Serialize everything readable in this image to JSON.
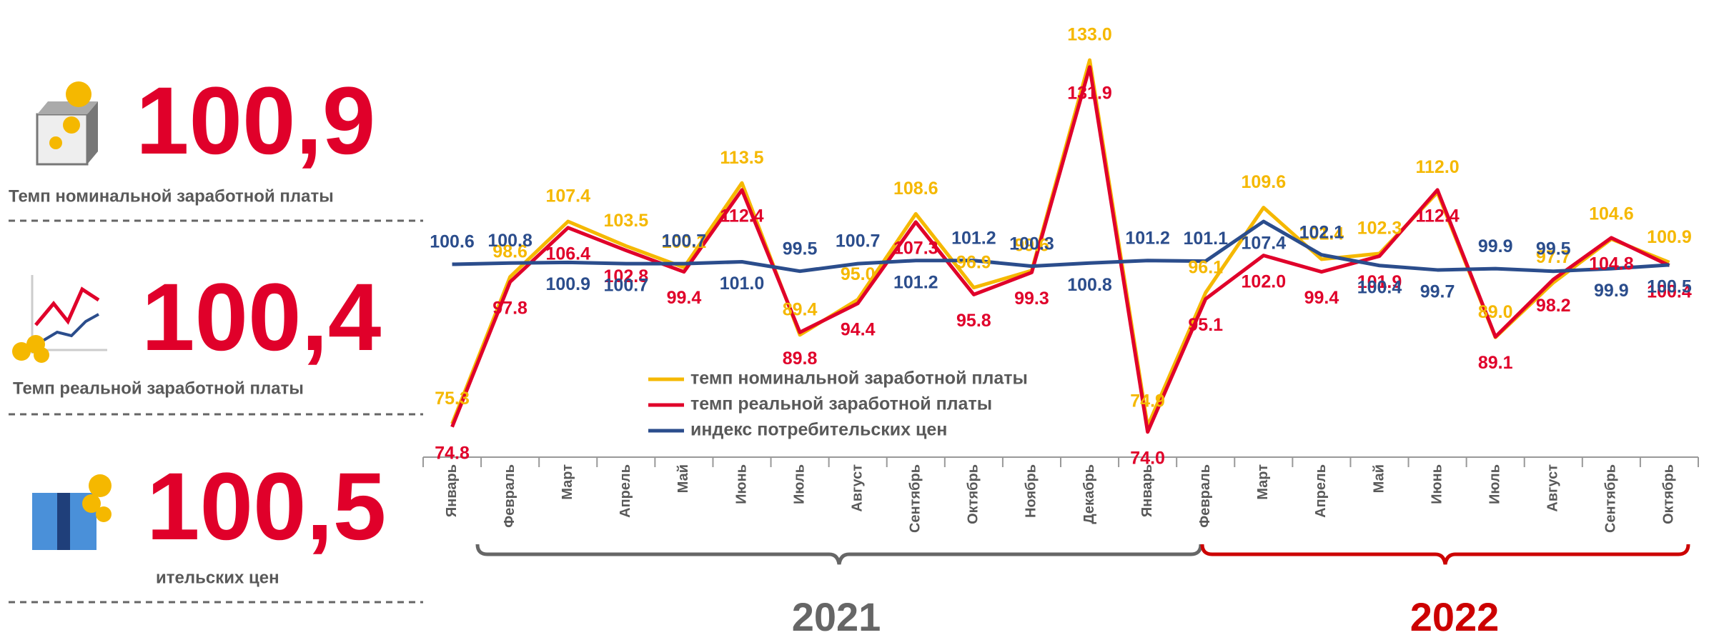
{
  "kpis": [
    {
      "value": "100,9",
      "label": "Темп номинальной заработной платы"
    },
    {
      "value": "100,4",
      "label": "Темп реальной заработной платы"
    },
    {
      "value": "100,5",
      "label": "ительских цен"
    }
  ],
  "chart_data": {
    "type": "line",
    "categories": [
      "Январь",
      "Февраль",
      "Март",
      "Апрель",
      "Май",
      "Июнь",
      "Июль",
      "Август",
      "Сентябрь",
      "Октябрь",
      "Ноябрь",
      "Декабрь",
      "Январь",
      "Февраль",
      "Март",
      "Апрель",
      "Май",
      "Июнь",
      "Июль",
      "Август",
      "Сентябрь",
      "Октябрь"
    ],
    "years": [
      "2021",
      "2022"
    ],
    "ylim": [
      70,
      138
    ],
    "series": [
      {
        "name": "темп номинальной заработной платы",
        "color": "#f5b800",
        "values": [
          75.3,
          98.6,
          107.4,
          103.5,
          100.1,
          113.5,
          89.4,
          95.0,
          108.6,
          96.9,
          99.6,
          133.0,
          74.9,
          96.1,
          109.6,
          101.4,
          102.3,
          112.0,
          89.0,
          97.7,
          104.6,
          100.9
        ],
        "value_labels": [
          "75.3",
          "98.6",
          "107.4",
          "103.5",
          "100.1",
          "113.5",
          "89.4",
          "95.0",
          "108.6",
          "96.9",
          "99.6",
          "133.0",
          "74.9",
          "96.1",
          "109.6",
          "101.4",
          "102.3",
          "112.0",
          "89.0",
          "97.7",
          "104.6",
          "100.9"
        ]
      },
      {
        "name": "темп реальной заработной платы",
        "color": "#e0002a",
        "values": [
          74.8,
          97.8,
          106.4,
          102.8,
          99.4,
          112.4,
          89.8,
          94.4,
          107.3,
          95.8,
          99.3,
          131.9,
          74.0,
          95.1,
          102.0,
          99.4,
          101.9,
          112.4,
          89.1,
          98.2,
          104.8,
          100.4
        ],
        "value_labels": [
          "74.8",
          "97.8",
          "106.4",
          "102.8",
          "99.4",
          "112.4",
          "89.8",
          "94.4",
          "107.3",
          "95.8",
          "99.3",
          "131.9",
          "74.0",
          "95.1",
          "102.0",
          "99.4",
          "101.9",
          "112.4",
          "89.1",
          "98.2",
          "104.8",
          "100.4"
        ]
      },
      {
        "name": "индекс потребительских цен",
        "color": "#2b4d8c",
        "values": [
          100.6,
          100.8,
          100.9,
          100.7,
          100.7,
          101.0,
          99.5,
          100.7,
          101.2,
          101.2,
          100.3,
          100.8,
          101.2,
          101.1,
          107.4,
          102.1,
          100.4,
          99.7,
          99.9,
          99.5,
          99.9,
          100.5
        ],
        "value_labels": [
          "100.6",
          "100.8",
          "100.9",
          "100.7",
          "100.7",
          "101.0",
          "99.5",
          "100.7",
          "101.2",
          "101.2",
          "100.3",
          "100.8",
          "101.2",
          "101.1",
          "107.4",
          "102.1",
          "100.4",
          "99.7",
          "99.9",
          "99.5",
          "99.9",
          "100.5"
        ]
      }
    ]
  }
}
